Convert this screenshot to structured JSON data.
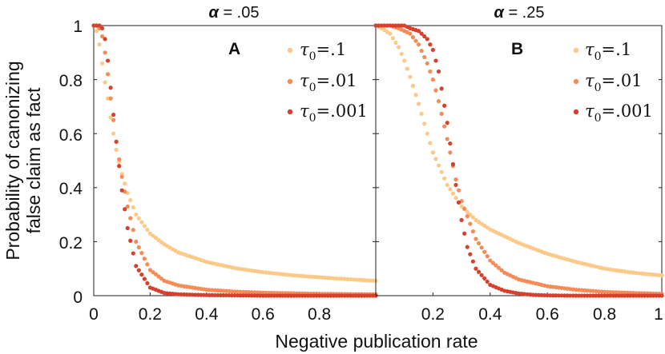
{
  "colors": {
    "series_0": "#fcc987",
    "series_1": "#f58b57",
    "series_2": "#d6402c",
    "axis": "#222222"
  },
  "chart_data": {
    "type": "scatter",
    "ylabel_lines": [
      "Probability of canonizing",
      "false claim as fact"
    ],
    "xlabel": "Negative publication rate",
    "xlim": [
      0,
      1
    ],
    "ylim": [
      0,
      1
    ],
    "x_ticks": [
      "0",
      "0.2",
      "0.4",
      "0.6",
      "0.8",
      "1"
    ],
    "y_ticks": [
      "0",
      "0.2",
      "0.4",
      "0.6",
      "0.8",
      "1"
    ],
    "legend_position": "top-right",
    "panels": [
      {
        "letter": "A",
        "title_symbol": "α",
        "title_value": " = .05",
        "series": [
          {
            "name_symbol": "τ",
            "name_sub": "0",
            "name_value": "=.1",
            "x": [
              0.0,
              0.01,
              0.02,
              0.03,
              0.04,
              0.05,
              0.06,
              0.08,
              0.1,
              0.12,
              0.15,
              0.2,
              0.25,
              0.3,
              0.4,
              0.5,
              0.6,
              0.7,
              0.8,
              0.9,
              1.0
            ],
            "y": [
              1.0,
              0.98,
              0.93,
              0.86,
              0.79,
              0.73,
              0.66,
              0.54,
              0.45,
              0.38,
              0.3,
              0.23,
              0.19,
              0.16,
              0.125,
              0.102,
              0.087,
              0.076,
              0.068,
              0.061,
              0.055
            ]
          },
          {
            "name_symbol": "τ",
            "name_sub": "0",
            "name_value": "=.01",
            "x": [
              0.0,
              0.01,
              0.02,
              0.03,
              0.04,
              0.05,
              0.06,
              0.08,
              0.1,
              0.12,
              0.15,
              0.2,
              0.25,
              0.3,
              0.4,
              0.5,
              0.6,
              0.7,
              0.8,
              0.9,
              1.0
            ],
            "y": [
              1.0,
              1.0,
              0.99,
              0.96,
              0.9,
              0.82,
              0.73,
              0.57,
              0.44,
              0.33,
              0.2,
              0.095,
              0.055,
              0.038,
              0.022,
              0.015,
              0.011,
              0.009,
              0.007,
              0.006,
              0.005
            ]
          },
          {
            "name_symbol": "τ",
            "name_sub": "0",
            "name_value": "=.001",
            "x": [
              0.0,
              0.01,
              0.02,
              0.03,
              0.04,
              0.05,
              0.06,
              0.08,
              0.1,
              0.12,
              0.15,
              0.2,
              0.25,
              0.3,
              0.4,
              0.5,
              0.6,
              0.7,
              0.8,
              0.9,
              1.0
            ],
            "y": [
              1.0,
              1.0,
              1.0,
              0.99,
              0.95,
              0.87,
              0.77,
              0.57,
              0.39,
              0.25,
              0.11,
              0.03,
              0.01,
              0.005,
              0.002,
              0.001,
              0.0,
              0.0,
              0.0,
              0.0,
              0.0
            ]
          }
        ]
      },
      {
        "letter": "B",
        "title_symbol": "α",
        "title_value": " = .25",
        "series": [
          {
            "name_symbol": "τ",
            "name_sub": "0",
            "name_value": "=.1",
            "x": [
              0.0,
              0.02,
              0.05,
              0.08,
              0.1,
              0.12,
              0.15,
              0.18,
              0.2,
              0.25,
              0.3,
              0.35,
              0.4,
              0.45,
              0.5,
              0.6,
              0.7,
              0.8,
              0.9,
              1.0
            ],
            "y": [
              1.0,
              0.99,
              0.97,
              0.92,
              0.87,
              0.81,
              0.71,
              0.6,
              0.53,
              0.41,
              0.33,
              0.28,
              0.245,
              0.22,
              0.195,
              0.155,
              0.125,
              0.1,
              0.085,
              0.075
            ]
          },
          {
            "name_symbol": "τ",
            "name_sub": "0",
            "name_value": "=.01",
            "x": [
              0.0,
              0.02,
              0.05,
              0.08,
              0.1,
              0.12,
              0.15,
              0.18,
              0.2,
              0.22,
              0.25,
              0.28,
              0.3,
              0.35,
              0.4,
              0.45,
              0.5,
              0.6,
              0.7,
              0.8,
              0.9,
              1.0
            ],
            "y": [
              1.0,
              1.0,
              1.0,
              0.99,
              0.98,
              0.97,
              0.93,
              0.86,
              0.8,
              0.72,
              0.58,
              0.43,
              0.35,
              0.21,
              0.13,
              0.085,
              0.06,
              0.035,
              0.022,
              0.014,
              0.01,
              0.007
            ]
          },
          {
            "name_symbol": "τ",
            "name_sub": "0",
            "name_value": "=.001",
            "x": [
              0.0,
              0.02,
              0.05,
              0.08,
              0.1,
              0.12,
              0.15,
              0.18,
              0.2,
              0.22,
              0.25,
              0.28,
              0.3,
              0.32,
              0.35,
              0.4,
              0.45,
              0.5,
              0.55,
              0.6,
              0.7,
              0.8,
              0.9,
              1.0
            ],
            "y": [
              1.0,
              1.0,
              1.0,
              1.0,
              1.0,
              0.99,
              0.98,
              0.95,
              0.91,
              0.83,
              0.64,
              0.41,
              0.28,
              0.18,
              0.1,
              0.04,
              0.018,
              0.008,
              0.003,
              0.001,
              0.0,
              0.0,
              0.0,
              0.0
            ]
          }
        ]
      }
    ]
  }
}
